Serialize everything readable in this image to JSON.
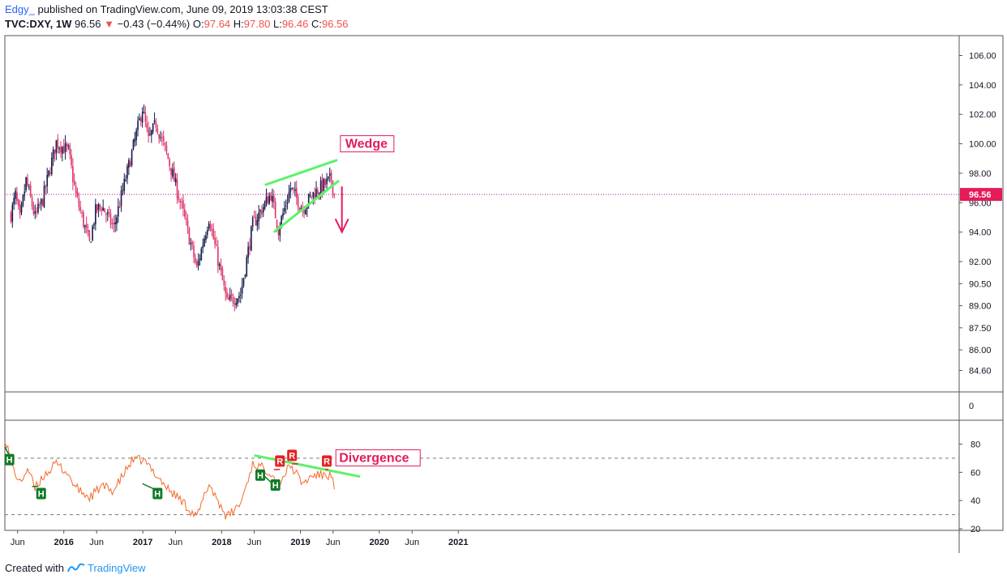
{
  "header": {
    "username": "Edgy_",
    "published": "published on TradingView.com, June 09, 2019 13:03:38 CEST",
    "symbol": "TVC:DXY, 1W",
    "last": "96.56",
    "change": "−0.43 (−0.44%)",
    "o_label": "O:",
    "o": "97.64",
    "h_label": "H:",
    "h": "97.80",
    "l_label": "L:",
    "l": "96.46",
    "c_label": "C:",
    "c": "96.56"
  },
  "footer": {
    "created": "Created with",
    "brand": "TradingView"
  },
  "colors": {
    "up": "#131a4a",
    "down": "#e0336b",
    "wedge": "#5cf26a",
    "rsi": "#f36b29",
    "annot": "#e51b5a",
    "hidden": "#107a26",
    "regular": "#e52222"
  },
  "chart_data": [
    {
      "type": "candlestick",
      "title": "",
      "ylim": [
        84.6,
        106.0
      ],
      "y_ticks": [
        "106.00",
        "104.00",
        "102.00",
        "100.00",
        "98.00",
        "96.00",
        "94.00",
        "92.00",
        "90.50",
        "89.00",
        "87.50",
        "86.00",
        "84.60"
      ],
      "x_ticks": [
        "Jun",
        "2016",
        "Jun",
        "2017",
        "Jun",
        "2018",
        "Jun",
        "2019",
        "Jun",
        "2020",
        "Jun",
        "2021"
      ],
      "last_price_label": "96.56",
      "annotations": {
        "wedge": "Wedge"
      },
      "anchors": [
        [
          "2015-05-01",
          95.2
        ],
        [
          "2015-05-22",
          96.5
        ],
        [
          "2015-06-12",
          94.8
        ],
        [
          "2015-07-10",
          97.5
        ],
        [
          "2015-08-21",
          95.0
        ],
        [
          "2015-09-25",
          96.2
        ],
        [
          "2015-11-27",
          100.1
        ],
        [
          "2016-01-22",
          99.5
        ],
        [
          "2016-02-26",
          96.5
        ],
        [
          "2016-04-29",
          93.2
        ],
        [
          "2016-05-27",
          95.4
        ],
        [
          "2016-06-24",
          95.8
        ],
        [
          "2016-08-19",
          94.3
        ],
        [
          "2016-10-28",
          98.5
        ],
        [
          "2016-12-30",
          102.4
        ],
        [
          "2017-01-27",
          100.2
        ],
        [
          "2017-03-03",
          101.4
        ],
        [
          "2017-04-28",
          99.0
        ],
        [
          "2017-06-30",
          95.7
        ],
        [
          "2017-09-08",
          91.5
        ],
        [
          "2017-11-03",
          95.0
        ],
        [
          "2018-01-26",
          89.2
        ],
        [
          "2018-03-30",
          89.8
        ],
        [
          "2018-05-25",
          94.5
        ],
        [
          "2018-08-17",
          96.6
        ],
        [
          "2018-09-21",
          94.2
        ],
        [
          "2018-11-16",
          97.0
        ],
        [
          "2019-01-11",
          95.6
        ],
        [
          "2019-03-01",
          96.6
        ],
        [
          "2019-05-24",
          97.6
        ],
        [
          "2019-06-07",
          96.56
        ]
      ],
      "current_price": 96.56
    },
    {
      "type": "line",
      "title": "",
      "ylim": [
        20,
        80
      ],
      "y_ticks": [
        "80",
        "60",
        "40",
        "20"
      ],
      "zero_label": "0",
      "reference_levels": [
        30,
        70
      ],
      "annotations": {
        "divergence": "Divergence",
        "hidden_markers": [
          "H",
          "H",
          "H",
          "H",
          "H"
        ],
        "regular_markers": [
          "R",
          "R",
          "R"
        ]
      },
      "series": [
        {
          "anchors": [
            [
              "2015-04-03",
              85
            ],
            [
              "2015-05-08",
              64
            ],
            [
              "2015-06-12",
              52
            ],
            [
              "2015-07-17",
              63
            ],
            [
              "2015-08-21",
              48
            ],
            [
              "2015-09-25",
              57
            ],
            [
              "2015-11-27",
              66
            ],
            [
              "2016-01-15",
              60
            ],
            [
              "2016-02-26",
              49
            ],
            [
              "2016-04-29",
              42
            ],
            [
              "2016-06-24",
              50
            ],
            [
              "2016-08-19",
              47
            ],
            [
              "2016-11-11",
              68
            ],
            [
              "2016-12-30",
              69
            ],
            [
              "2017-02-24",
              60
            ],
            [
              "2017-04-28",
              48
            ],
            [
              "2017-06-30",
              40
            ],
            [
              "2017-09-08",
              28
            ],
            [
              "2017-11-03",
              52
            ],
            [
              "2018-01-26",
              28
            ],
            [
              "2018-03-30",
              38
            ],
            [
              "2018-05-25",
              66
            ],
            [
              "2018-07-27",
              62
            ],
            [
              "2018-08-17",
              60
            ],
            [
              "2018-09-21",
              52
            ],
            [
              "2018-11-16",
              65
            ],
            [
              "2019-01-11",
              52
            ],
            [
              "2019-03-01",
              58
            ],
            [
              "2019-05-24",
              58
            ],
            [
              "2019-06-07",
              48
            ]
          ]
        }
      ]
    }
  ]
}
